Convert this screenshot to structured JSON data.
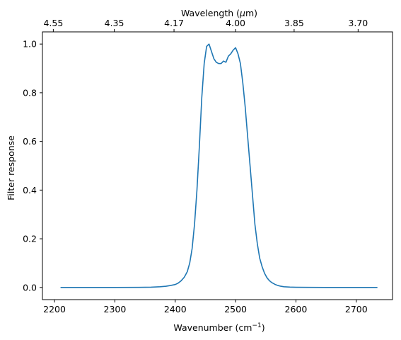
{
  "chart_data": {
    "type": "line",
    "xlabel": "Wavenumber (cm",
    "xlabel_superscript": "−1",
    "xlabel_suffix": ")",
    "ylabel": "Filter response",
    "top_xlabel": "Wavelength (",
    "top_xlabel_symbol": "μ",
    "top_xlabel_suffix": "m)",
    "xlim": [
      2180,
      2760
    ],
    "ylim": [
      -0.05,
      1.05
    ],
    "x_ticks": [
      {
        "value": 2200,
        "label": "2200"
      },
      {
        "value": 2300,
        "label": "2300"
      },
      {
        "value": 2400,
        "label": "2400"
      },
      {
        "value": 2500,
        "label": "2500"
      },
      {
        "value": 2600,
        "label": "2600"
      },
      {
        "value": 2700,
        "label": "2700"
      }
    ],
    "y_ticks": [
      {
        "value": 0.0,
        "label": "0.0"
      },
      {
        "value": 0.2,
        "label": "0.2"
      },
      {
        "value": 0.4,
        "label": "0.4"
      },
      {
        "value": 0.6,
        "label": "0.6"
      },
      {
        "value": 0.8,
        "label": "0.8"
      },
      {
        "value": 1.0,
        "label": "1.0"
      }
    ],
    "top_ticks": [
      {
        "wavenumber": 2198,
        "label": "4.55"
      },
      {
        "wavenumber": 2299,
        "label": "4.35"
      },
      {
        "wavenumber": 2398,
        "label": "4.17"
      },
      {
        "wavenumber": 2500,
        "label": "4.00"
      },
      {
        "wavenumber": 2597,
        "label": "3.85"
      },
      {
        "wavenumber": 2703,
        "label": "3.70"
      }
    ],
    "grid": false,
    "color": "#1f77b4",
    "series": [
      {
        "x": [
          2210,
          2250,
          2300,
          2340,
          2360,
          2375,
          2385,
          2392,
          2400,
          2405,
          2410,
          2415,
          2420,
          2424,
          2428,
          2432,
          2436,
          2440,
          2444,
          2448,
          2452,
          2456,
          2460,
          2464,
          2468,
          2472,
          2476,
          2480,
          2484,
          2488,
          2492,
          2496,
          2500,
          2504,
          2508,
          2512,
          2516,
          2520,
          2524,
          2528,
          2532,
          2536,
          2540,
          2544,
          2548,
          2552,
          2556,
          2560,
          2565,
          2570,
          2575,
          2580,
          2590,
          2600,
          2620,
          2650,
          2700,
          2735
        ],
        "y": [
          0.0,
          0.0,
          0.0,
          0.0005,
          0.001,
          0.003,
          0.005,
          0.008,
          0.012,
          0.018,
          0.028,
          0.042,
          0.065,
          0.1,
          0.16,
          0.26,
          0.4,
          0.58,
          0.78,
          0.92,
          0.99,
          1.0,
          0.97,
          0.94,
          0.925,
          0.92,
          0.92,
          0.93,
          0.925,
          0.95,
          0.96,
          0.975,
          0.985,
          0.96,
          0.92,
          0.84,
          0.74,
          0.62,
          0.5,
          0.38,
          0.26,
          0.18,
          0.12,
          0.085,
          0.058,
          0.04,
          0.028,
          0.02,
          0.013,
          0.008,
          0.005,
          0.003,
          0.0015,
          0.0008,
          0.0003,
          0.0001,
          0.0,
          0.0
        ]
      }
    ]
  }
}
